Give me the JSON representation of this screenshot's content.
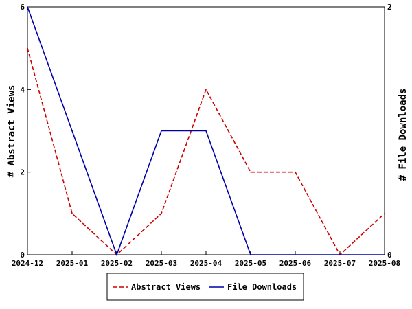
{
  "chart_data": {
    "type": "line",
    "categories": [
      "2024-12",
      "2025-01",
      "2025-02",
      "2025-03",
      "2025-04",
      "2025-05",
      "2025-06",
      "2025-07",
      "2025-08"
    ],
    "series": [
      {
        "name": "Abstract Views",
        "axis": "left",
        "color": "#cc0000",
        "style": "dashed",
        "values": [
          5,
          1,
          0,
          1,
          4,
          2,
          2,
          0,
          1
        ]
      },
      {
        "name": "File Downloads",
        "axis": "right",
        "color": "#0000aa",
        "style": "solid",
        "values": [
          2,
          1,
          0,
          1,
          1,
          0,
          0,
          0,
          0
        ]
      }
    ],
    "ylabel_left": "# Abstract Views",
    "ylabel_right": "# File Downloads",
    "ylim_left": [
      0,
      6
    ],
    "yticks_left": [
      0,
      2,
      4,
      6
    ],
    "ylim_right": [
      0,
      2
    ],
    "yticks_right": [
      0,
      2
    ],
    "grid": false,
    "legend_position": "bottom"
  }
}
